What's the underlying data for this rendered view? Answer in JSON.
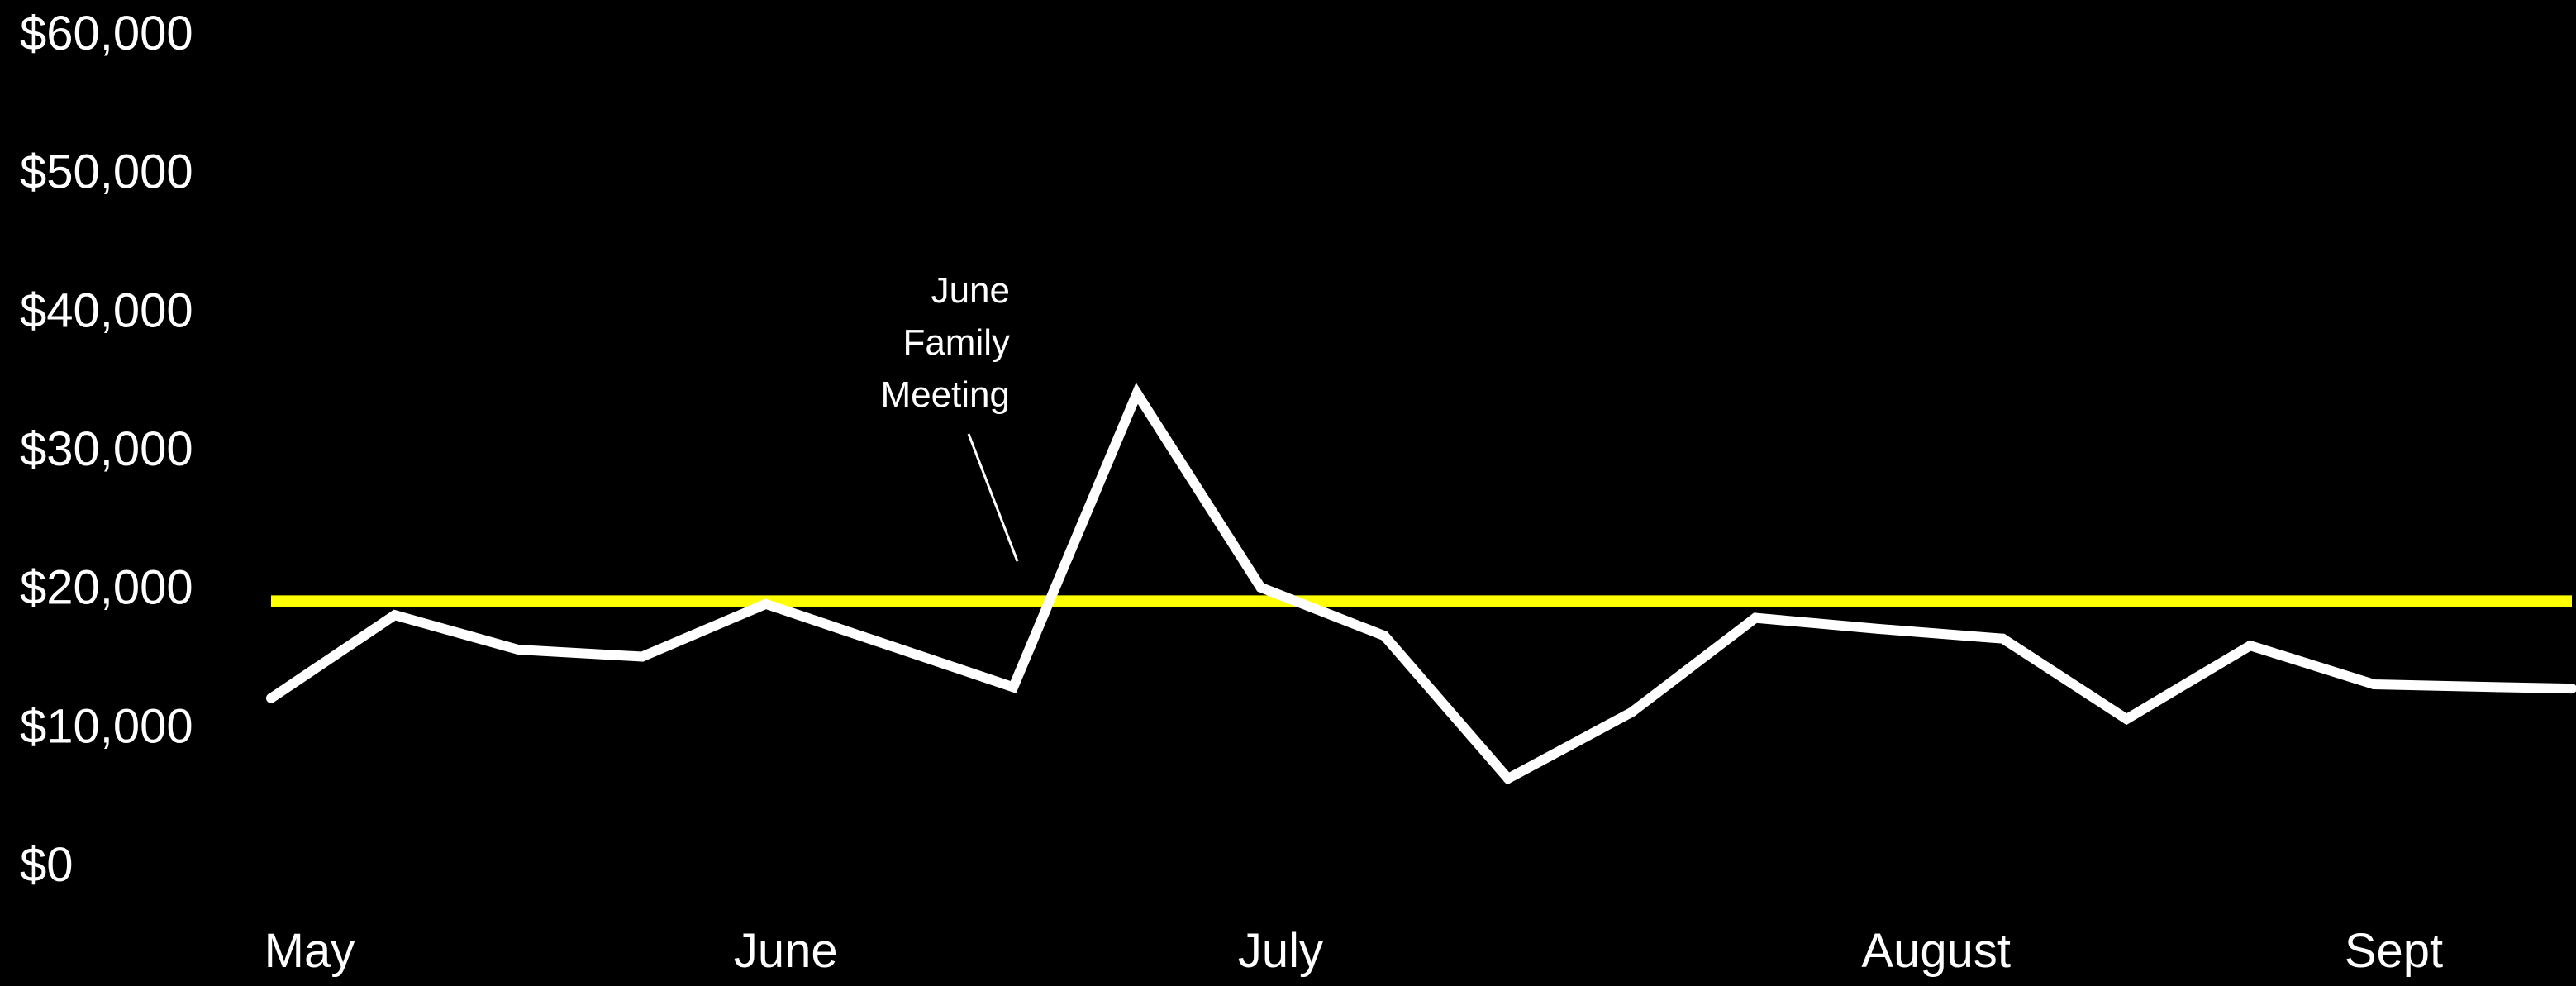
{
  "chart_data": {
    "type": "line",
    "ylim": [
      0,
      60000
    ],
    "y_ticks": [
      {
        "value": 0,
        "label": "$0"
      },
      {
        "value": 10000,
        "label": "$10,000"
      },
      {
        "value": 20000,
        "label": "$20,000"
      },
      {
        "value": 30000,
        "label": "$30,000"
      },
      {
        "value": 40000,
        "label": "$40,000"
      },
      {
        "value": 50000,
        "label": "$50,000"
      },
      {
        "value": 60000,
        "label": "$60,000"
      }
    ],
    "x_range": [
      0,
      18.6
    ],
    "x_ticks": [
      {
        "value": 0.15,
        "label": "May"
      },
      {
        "value": 4,
        "label": "June"
      },
      {
        "value": 8,
        "label": "July"
      },
      {
        "value": 13.3,
        "label": "August"
      },
      {
        "value": 17,
        "label": "Sept"
      }
    ],
    "series": [
      {
        "color": "#ffffff",
        "x": [
          0,
          1,
          2,
          3,
          4,
          5,
          6,
          7,
          8,
          9,
          10,
          11,
          12,
          13,
          14,
          15,
          16,
          17,
          18,
          18.6
        ],
        "values": [
          12000,
          18000,
          15500,
          15000,
          18800,
          15800,
          12800,
          34000,
          20000,
          16500,
          6200,
          11000,
          17800,
          17000,
          16300,
          10500,
          15800,
          13000,
          12800,
          12700
        ]
      }
    ],
    "reference_line": {
      "value": 19000,
      "color": "#ffff00"
    },
    "annotations": [
      {
        "lines": [
          "June",
          "Family",
          "Meeting"
        ],
        "x": 6.1,
        "y": 19500
      }
    ],
    "grid": false,
    "background": "#000000"
  }
}
